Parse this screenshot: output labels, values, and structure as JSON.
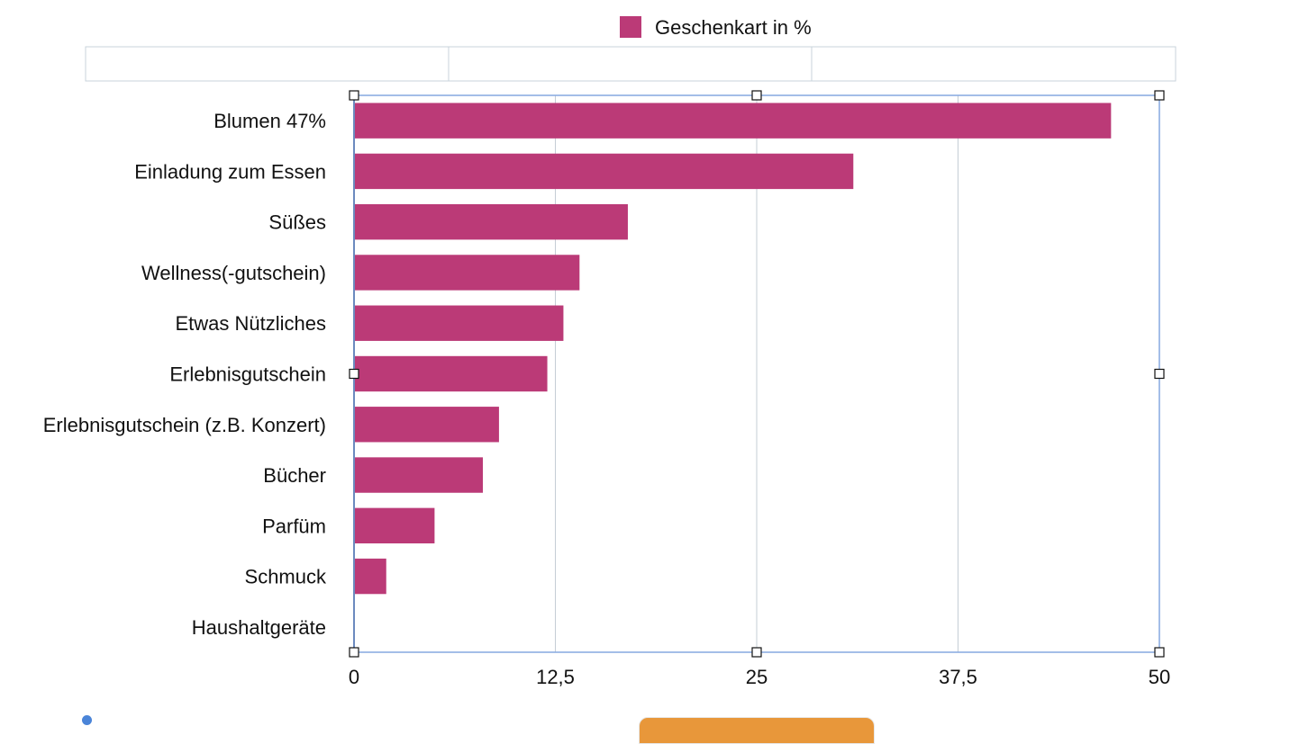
{
  "colors": {
    "bar": "#bb3a77",
    "grid": "#c5cdd5",
    "axis": "#1f2d5c",
    "selection": "#86a9e0",
    "placeholder_border": "#c9d3db",
    "accent_orange": "#e8973a",
    "dot_blue": "#4a84d8"
  },
  "legend": {
    "label": "Geschenkart in %"
  },
  "chart_data": {
    "type": "bar",
    "orientation": "horizontal",
    "categories": [
      "Blumen 47%",
      "Einladung zum Essen",
      "Süßes",
      "Wellness(-gutschein)",
      "Etwas Nützliches",
      "Erlebnisgutschein",
      "Erlebnisgutschein (z.B. Konzert)",
      "Bücher",
      "Parfüm",
      "Schmuck",
      "Haushaltgeräte"
    ],
    "series": [
      {
        "name": "Geschenkart in %",
        "values": [
          47,
          31,
          17,
          14,
          13,
          12,
          9,
          8,
          5,
          2,
          0
        ]
      }
    ],
    "xlim": [
      0,
      50
    ],
    "xticks": [
      "0",
      "12,5",
      "25",
      "37,5",
      "50"
    ],
    "grid": true,
    "legend_position": "top-center"
  }
}
